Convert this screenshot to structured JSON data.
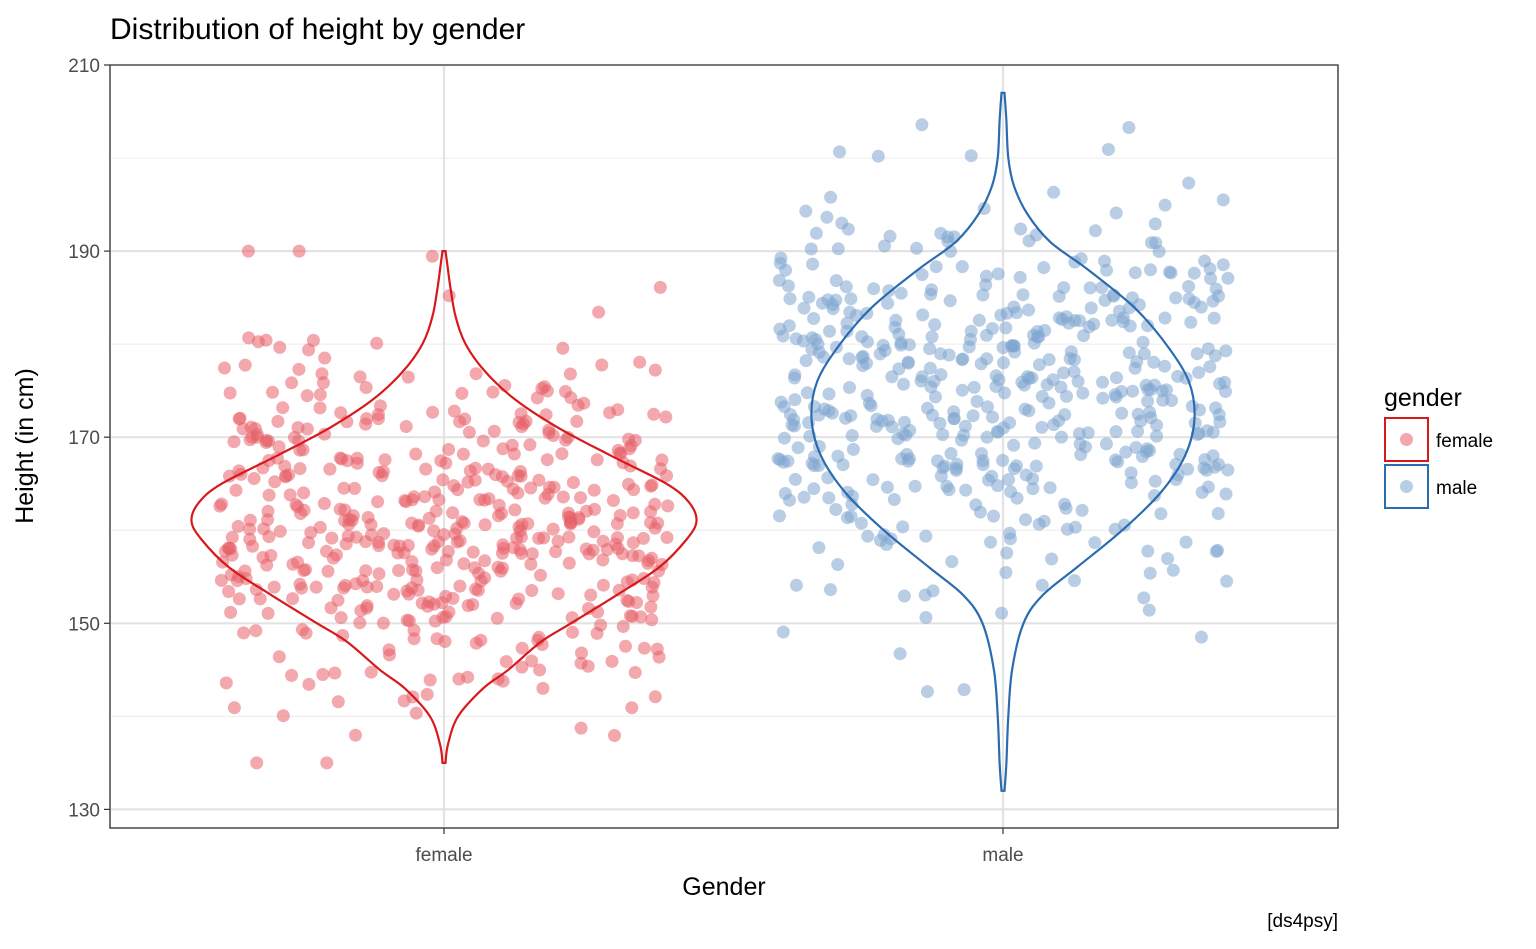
{
  "chart_data": {
    "type": "violin",
    "title": "Distribution of height by gender",
    "xlabel": "Gender",
    "ylabel": "Height (in cm)",
    "caption": "[ds4psy]",
    "categories": [
      "female",
      "male"
    ],
    "ylim": [
      128,
      210
    ],
    "yticks": [
      130,
      150,
      170,
      190,
      210
    ],
    "grid": true,
    "legend": {
      "title": "gender",
      "position": "right",
      "entries": [
        "female",
        "male"
      ]
    },
    "colors": {
      "female": "#d7191c",
      "male": "#2b6cb0",
      "female_fill": "#e8606a",
      "male_fill": "#7fa6cf"
    },
    "series": [
      {
        "name": "female",
        "n_points": 500,
        "mean": 161,
        "sd": 9.5,
        "min": 135,
        "max": 190,
        "density_profile": [
          [
            135,
            0.0
          ],
          [
            137,
            0.01
          ],
          [
            140,
            0.05
          ],
          [
            143,
            0.15
          ],
          [
            145,
            0.25
          ],
          [
            148,
            0.38
          ],
          [
            150,
            0.5
          ],
          [
            153,
            0.68
          ],
          [
            156,
            0.85
          ],
          [
            159,
            0.96
          ],
          [
            161,
            1.0
          ],
          [
            163,
            0.97
          ],
          [
            165,
            0.88
          ],
          [
            168,
            0.66
          ],
          [
            171,
            0.45
          ],
          [
            174,
            0.28
          ],
          [
            177,
            0.16
          ],
          [
            180,
            0.08
          ],
          [
            183,
            0.04
          ],
          [
            186,
            0.02
          ],
          [
            188,
            0.01
          ],
          [
            190,
            0.0
          ]
        ]
      },
      {
        "name": "male",
        "n_points": 500,
        "mean": 174,
        "sd": 11,
        "min": 132,
        "max": 207,
        "density_profile": [
          [
            132,
            0.0
          ],
          [
            135,
            0.01
          ],
          [
            140,
            0.02
          ],
          [
            145,
            0.04
          ],
          [
            150,
            0.1
          ],
          [
            153,
            0.2
          ],
          [
            156,
            0.38
          ],
          [
            160,
            0.62
          ],
          [
            164,
            0.82
          ],
          [
            168,
            0.95
          ],
          [
            172,
            1.0
          ],
          [
            176,
            0.97
          ],
          [
            180,
            0.85
          ],
          [
            184,
            0.68
          ],
          [
            188,
            0.44
          ],
          [
            191,
            0.24
          ],
          [
            194,
            0.12
          ],
          [
            197,
            0.05
          ],
          [
            200,
            0.02
          ],
          [
            204,
            0.01
          ],
          [
            207,
            0.0
          ]
        ]
      }
    ]
  }
}
